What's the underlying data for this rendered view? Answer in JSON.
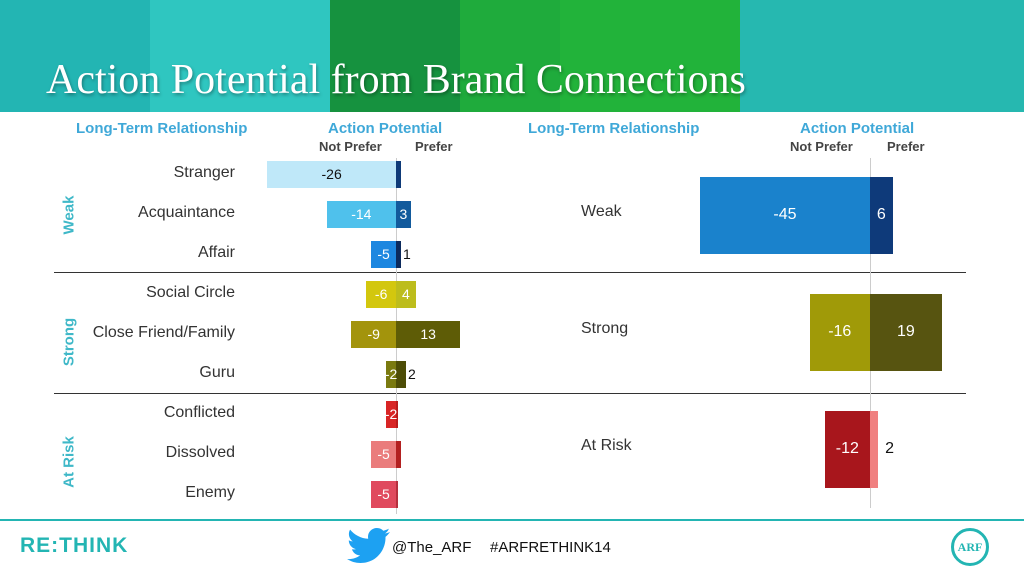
{
  "header": {
    "title": "Action Potential from Brand Connections"
  },
  "footer": {
    "logo": "RE:THINK",
    "handle": "@The_ARF",
    "hashtag": "#ARFRETHINK14",
    "badge": "ARF"
  },
  "colors": {
    "banner": "#23b5b3",
    "header_text": "#3fa8d8",
    "group_text": "#3fb8c8"
  },
  "chart_data": [
    {
      "type": "bar",
      "orientation": "horizontal",
      "layout": "diverging",
      "column_header": "Long-Term Relationship",
      "value_header": "Action Potential",
      "negative_label": "Not Prefer",
      "positive_label": "Prefer",
      "rows": [
        {
          "group": "Weak",
          "label": "Stranger",
          "not_prefer": -26,
          "prefer": 1,
          "prefer_label": "",
          "neg_color": "#bfe8f9",
          "pos_color": "#0e3a78",
          "neg_text": "#111111"
        },
        {
          "group": "Weak",
          "label": "Acquaintance",
          "not_prefer": -14,
          "prefer": 3,
          "prefer_label": "3",
          "neg_color": "#4fc1ec",
          "pos_color": "#125a9c",
          "neg_text": "#ffffff"
        },
        {
          "group": "Weak",
          "label": "Affair",
          "not_prefer": -5,
          "prefer": 1,
          "prefer_label": "1",
          "neg_color": "#1d87e0",
          "pos_color": "#0c2a5c",
          "neg_text": "#ffffff"
        },
        {
          "group": "Strong",
          "label": "Social Circle",
          "not_prefer": -6,
          "prefer": 4,
          "prefer_label": "4",
          "neg_color": "#d3c70e",
          "pos_color": "#bdbd1c",
          "neg_text": "#ffffff"
        },
        {
          "group": "Strong",
          "label": "Close Friend/Family",
          "not_prefer": -9,
          "prefer": 13,
          "prefer_label": "13",
          "neg_color": "#a3940c",
          "pos_color": "#5e5c06",
          "neg_text": "#ffffff"
        },
        {
          "group": "Strong",
          "label": "Guru",
          "not_prefer": -2,
          "prefer": 2,
          "prefer_label": "2",
          "neg_color": "#7a7a10",
          "pos_color": "#4d4d07",
          "neg_text": "#ffffff"
        },
        {
          "group": "At Risk",
          "label": "Conflicted",
          "not_prefer": -2,
          "prefer": 0.5,
          "prefer_label": "",
          "neg_color": "#d82525",
          "pos_color": "#b81b1b",
          "neg_text": "#ffffff"
        },
        {
          "group": "At Risk",
          "label": "Dissolved",
          "not_prefer": -5,
          "prefer": 1,
          "prefer_label": "",
          "neg_color": "#ea7c7c",
          "pos_color": "#b32020",
          "neg_text": "#ffffff"
        },
        {
          "group": "At Risk",
          "label": "Enemy",
          "not_prefer": -5,
          "prefer": 0.3,
          "prefer_label": "",
          "neg_color": "#e04a5e",
          "pos_color": "#b5303e",
          "neg_text": "#ffffff"
        }
      ],
      "groups": [
        "Weak",
        "Strong",
        "At Risk"
      ]
    },
    {
      "type": "bar",
      "orientation": "horizontal",
      "layout": "diverging",
      "column_header": "Long-Term Relationship",
      "value_header": "Action Potential",
      "negative_label": "Not Prefer",
      "positive_label": "Prefer",
      "rows": [
        {
          "label": "Weak",
          "not_prefer": -45,
          "prefer": 6,
          "prefer_label": "6",
          "neg_color": "#1a82cc",
          "pos_color": "#0e3a7a",
          "pos_text": "#ffffff"
        },
        {
          "label": "Strong",
          "not_prefer": -16,
          "prefer": 19,
          "prefer_label": "19",
          "neg_color": "#a09a08",
          "pos_color": "#575410",
          "pos_text": "#ffffff"
        },
        {
          "label": "At Risk",
          "not_prefer": -12,
          "prefer": 2,
          "prefer_label": "2",
          "neg_color": "#a8161c",
          "pos_color": "#f08080",
          "pos_text": "#111111"
        }
      ]
    }
  ]
}
